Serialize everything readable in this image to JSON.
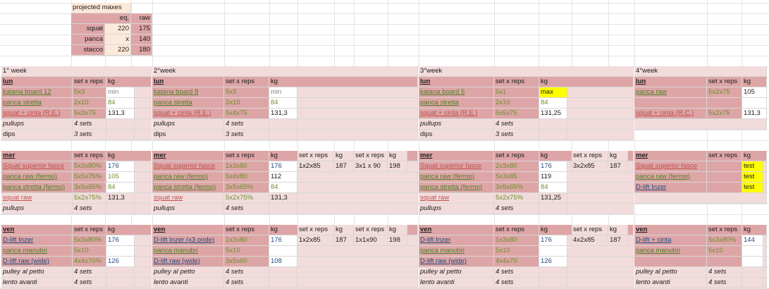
{
  "projected": {
    "title": "projected maxes",
    "col_eq": "eq.",
    "col_raw": "raw",
    "rows": [
      {
        "label": "squat",
        "eq": "220",
        "raw": "175"
      },
      {
        "label": "panca",
        "eq": "x",
        "raw": "140"
      },
      {
        "label": "stacco",
        "eq": "220",
        "raw": "180"
      }
    ]
  },
  "headers": {
    "setxreps": "set x reps",
    "kg": "kg"
  },
  "days": {
    "lun": "lun",
    "mer": "mer",
    "ven": "ven"
  },
  "weeks": [
    {
      "title": "1° week",
      "lun": [
        {
          "ex": "katana board 12",
          "sets": "5x3",
          "kg": "min"
        },
        {
          "ex": "panca stretta",
          "sets": "2x10",
          "kg": "84"
        },
        {
          "ex": "squat + cinta (R.E.)",
          "sets": "5x3x75",
          "kg": "131,3"
        },
        {
          "ex": "pullups",
          "sets": "4 sets",
          "kg": ""
        },
        {
          "ex": "dips",
          "sets": "3 sets",
          "kg": ""
        }
      ],
      "mer": [
        {
          "ex": "Squat superior fasce",
          "sets": "5x3x80%",
          "kg": "176"
        },
        {
          "ex": "panca raw (fermo)",
          "sets": "5x5x75%",
          "kg": "105"
        },
        {
          "ex": "panca stretta (fermo)",
          "sets": "3x5x65%",
          "kg": "84"
        },
        {
          "ex": "squat raw",
          "sets": "5x2x75%",
          "kg": "131,3"
        },
        {
          "ex": "pullups",
          "sets": "4 sets",
          "kg": ""
        }
      ],
      "ven": [
        {
          "ex": "D-lift Inzer",
          "sets": "5x3x80%",
          "kg": "176"
        },
        {
          "ex": "panca manubri",
          "sets": "5x10",
          "kg": ""
        },
        {
          "ex": "D-lift raw (wide)",
          "sets": "4x4x70%",
          "kg": "126"
        },
        {
          "ex": "pulley al petto",
          "sets": "4 sets",
          "kg": ""
        },
        {
          "ex": "lento avanti",
          "sets": "4 sets",
          "kg": ""
        }
      ]
    },
    {
      "title": "2°week",
      "lun": [
        {
          "ex": "katana board 8",
          "sets": "5x3",
          "kg": "min"
        },
        {
          "ex": "panca stretta",
          "sets": "2x10",
          "kg": "84"
        },
        {
          "ex": "squat + cinta (R.E.)",
          "sets": "5x4x75",
          "kg": "131,3"
        },
        {
          "ex": "pullups",
          "sets": "4 sets",
          "kg": ""
        },
        {
          "ex": "dips",
          "sets": "3 sets",
          "kg": ""
        }
      ],
      "mer": [
        {
          "ex": "Squat superior fasce",
          "sets": "1x3x80",
          "kg": "176",
          "x1s": "1x2x85",
          "x1k": "187",
          "x2s": "3x1 x 90",
          "x2k": "198"
        },
        {
          "ex": "panca raw (fermo)",
          "sets": "5x4x80",
          "kg": "112"
        },
        {
          "ex": "panca stretta (fermo)",
          "sets": "3x5x65%",
          "kg": "84"
        },
        {
          "ex": "squat raw",
          "sets": "5x2x75%",
          "kg": "131,3"
        },
        {
          "ex": "pullups",
          "sets": "4 sets",
          "kg": ""
        }
      ],
      "ven": [
        {
          "ex": "D-lift Inzer (x3 onde)",
          "sets": "1x3x80",
          "kg": "176",
          "x1s": "1x2x85",
          "x1k": "187",
          "x2s": "1x1x90",
          "x2k": "198"
        },
        {
          "ex": "panca manubri",
          "sets": "5x10",
          "kg": ""
        },
        {
          "ex": "D-lift raw (wide)",
          "sets": "3x5x60",
          "kg": "108"
        },
        {
          "ex": "pulley al petto",
          "sets": "4 sets",
          "kg": ""
        },
        {
          "ex": "lento avanti",
          "sets": "4 sets",
          "kg": ""
        }
      ]
    },
    {
      "title": "3°week",
      "lun": [
        {
          "ex": "katana board 5",
          "sets": "5x1",
          "kg": "max"
        },
        {
          "ex": "panca stretta",
          "sets": "2x10",
          "kg": "84"
        },
        {
          "ex": "squat + cinta (R.E.)",
          "sets": "5x5x75",
          "kg": "131,25"
        },
        {
          "ex": "pullups",
          "sets": "4 sets",
          "kg": ""
        },
        {
          "ex": "dips",
          "sets": "3 sets",
          "kg": ""
        }
      ],
      "mer": [
        {
          "ex": "Squat superior fasce",
          "sets": "2x3x80",
          "kg": "176",
          "x1s": "3x2x85",
          "x1k": "187"
        },
        {
          "ex": "panca raw (fermo)",
          "sets": "5x3x85",
          "kg": "119"
        },
        {
          "ex": "panca stretta (fermo)",
          "sets": "3x5x65%",
          "kg": "84"
        },
        {
          "ex": "squat raw",
          "sets": "5x2x75%",
          "kg": "131,25"
        },
        {
          "ex": "pullups",
          "sets": "4 sets",
          "kg": ""
        }
      ],
      "ven": [
        {
          "ex": "D-lift Inzer",
          "sets": "1x3x80",
          "kg": "176",
          "x1s": "4x2x85",
          "x1k": "187"
        },
        {
          "ex": "panca manubri",
          "sets": "5x10",
          "kg": ""
        },
        {
          "ex": "D-lift raw (wide)",
          "sets": "4x4x70",
          "kg": "126"
        },
        {
          "ex": "pulley al petto",
          "sets": "4 sets",
          "kg": ""
        },
        {
          "ex": "lento avanti",
          "sets": "4 sets",
          "kg": ""
        }
      ]
    },
    {
      "title": "4°week",
      "lun": [
        {
          "ex": "panca raw",
          "sets": "5x2x75",
          "kg": "105"
        },
        {
          "ex": "",
          "sets": "",
          "kg": ""
        },
        {
          "ex": "squat + cinta (R.C.)",
          "sets": "5x2x75",
          "kg": "131,3"
        }
      ],
      "mer": [
        {
          "ex": "Squat superior fasce",
          "sets": "",
          "kg": "test"
        },
        {
          "ex": "panca raw (fermo)",
          "sets": "",
          "kg": "test"
        },
        {
          "ex": "D-lift Inzer",
          "sets": "",
          "kg": "test"
        }
      ],
      "ven": [
        {
          "ex": "D-lift + cinta",
          "sets": "5x3x80%",
          "kg": "144"
        },
        {
          "ex": "panca manubri",
          "sets": "5x10",
          "kg": ""
        },
        {
          "ex": "",
          "sets": "",
          "kg": ""
        },
        {
          "ex": "pulley al petto",
          "sets": "4 sets",
          "kg": ""
        },
        {
          "ex": "lento avanti",
          "sets": "4 sets",
          "kg": ""
        }
      ]
    }
  ],
  "colors": {
    "dark_pink": "#dea5a6",
    "light_pink": "#f2dcdb",
    "highlight": "#ffff00",
    "peach": "#fde9d9"
  }
}
